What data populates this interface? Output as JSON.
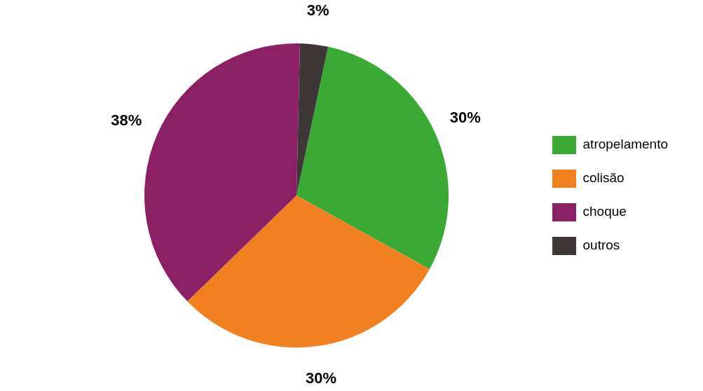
{
  "chart_data": {
    "type": "pie",
    "categories": [
      "atropelamento",
      "colisão",
      "choque",
      "outros"
    ],
    "values": [
      30,
      30,
      38,
      3
    ],
    "value_labels": [
      "30%",
      "30%",
      "38%",
      "3%"
    ],
    "colors": [
      "#3aaa35",
      "#f08020",
      "#8b2065",
      "#3d3835"
    ],
    "data_labels": true,
    "legend": "right"
  }
}
